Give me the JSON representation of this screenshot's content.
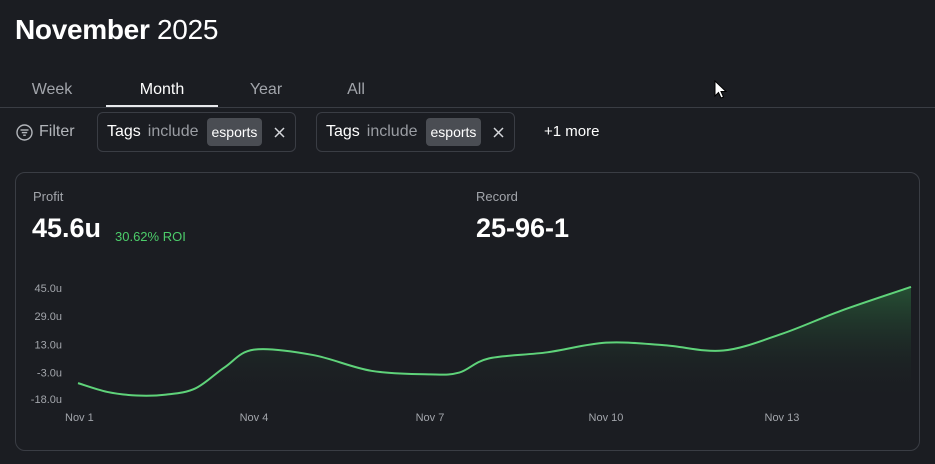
{
  "header": {
    "month": "November",
    "year": "2025"
  },
  "tabs": [
    {
      "label": "Week",
      "active": false
    },
    {
      "label": "Month",
      "active": true
    },
    {
      "label": "Year",
      "active": false
    },
    {
      "label": "All",
      "active": false
    }
  ],
  "filters": {
    "button_label": "Filter",
    "chips": [
      {
        "field": "Tags",
        "operator": "include",
        "value": "esports"
      },
      {
        "field": "Tags",
        "operator": "include",
        "value": "esports"
      }
    ],
    "more_label": "+1 more"
  },
  "stats": {
    "profit_label": "Profit",
    "profit_value": "45.6u",
    "roi": "30.62% ROI",
    "record_label": "Record",
    "record_value": "25-96-1"
  },
  "colors": {
    "line": "#5fd37a",
    "positive": "#4ccc6a",
    "background": "#1b1d22"
  },
  "chart_data": {
    "type": "area",
    "x_ticks": [
      "Nov 1",
      "Nov 4",
      "Nov 7",
      "Nov 10",
      "Nov 13"
    ],
    "y_ticks": [
      "45.0u",
      "29.0u",
      "13.0u",
      "-3.0u",
      "-18.0u"
    ],
    "ylim": [
      -18,
      45
    ],
    "series": [
      {
        "x": [
          1,
          1.5,
          2,
          2.5,
          3,
          3.5,
          4,
          5,
          6,
          7,
          7.5,
          8,
          9,
          10,
          11,
          12,
          13,
          14,
          15.2
        ],
        "values": [
          -9,
          -14,
          -16,
          -15.5,
          -12,
          0,
          10,
          7,
          -2,
          -4,
          -3,
          5,
          8.5,
          14,
          12.5,
          9.5,
          19,
          32,
          45.6
        ]
      }
    ],
    "grid": false,
    "legend": false
  }
}
